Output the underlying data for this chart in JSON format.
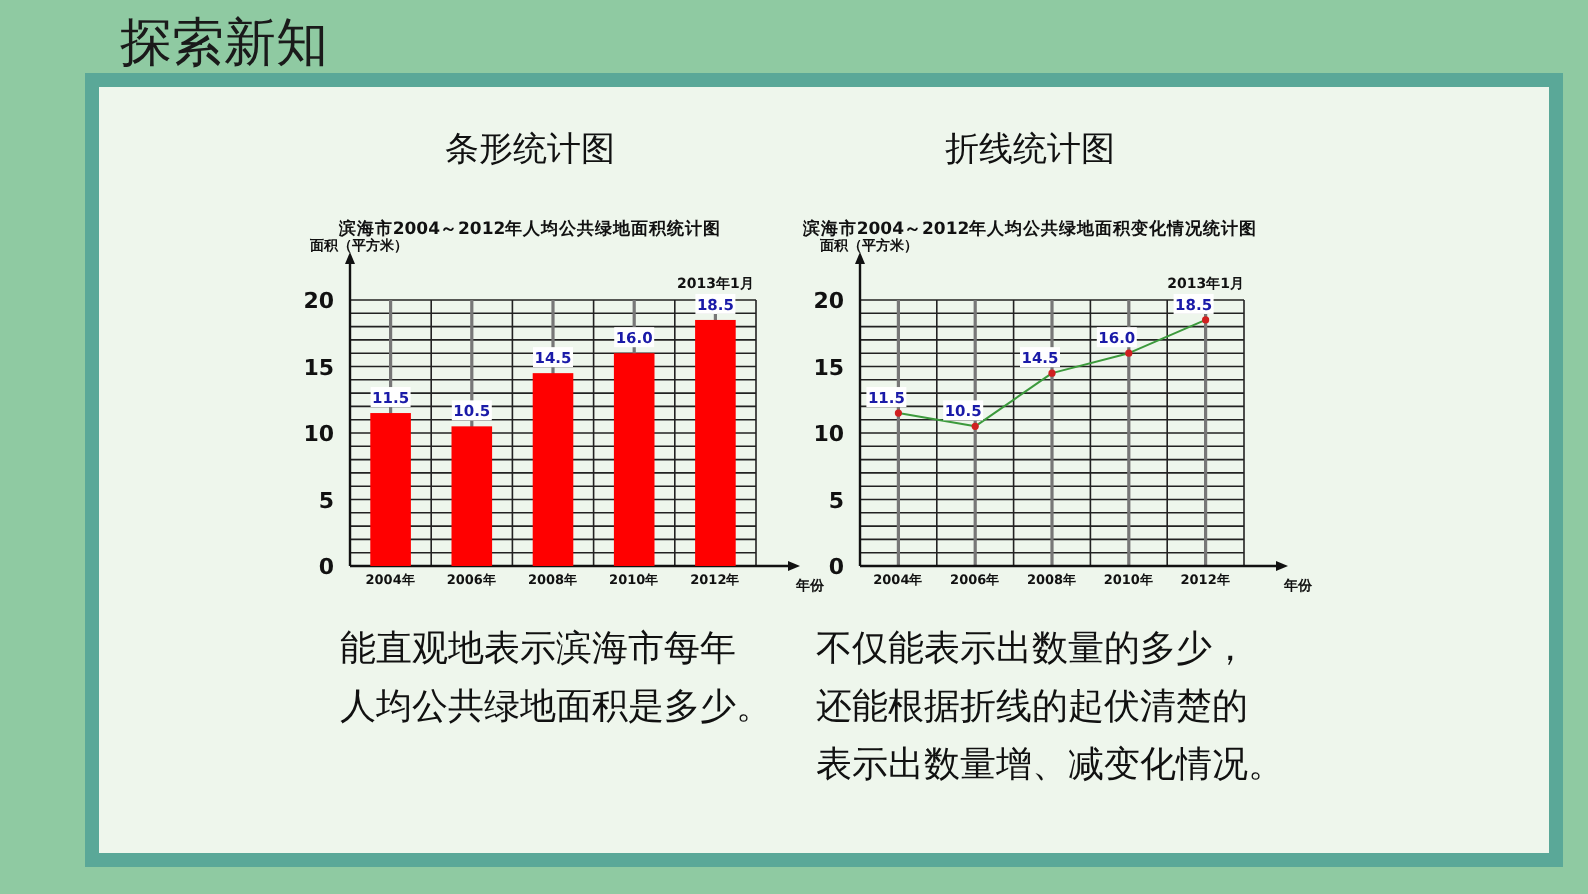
{
  "chart_data": [
    {
      "type": "bar",
      "subtitle": "条形统计图",
      "title": "滨海市2004～2012年人均公共绿地面积统计图",
      "ylabel": "面积（平方米）",
      "xlabel": "年份",
      "categories": [
        "2004年",
        "2006年",
        "2008年",
        "2010年",
        "2012年"
      ],
      "values": [
        11.5,
        10.5,
        14.5,
        16.0,
        18.5
      ],
      "color": "#ff0000",
      "value_labels": [
        "11.5",
        "10.5",
        "14.5",
        "16.0",
        "18.5"
      ],
      "ylim": [
        0,
        20
      ],
      "yticks": [
        0,
        {
          "value": 1,
          "label": null
        },
        {
          "value": 2,
          "label": null
        },
        {
          "value": 3,
          "label": null
        },
        {
          "value": 4,
          "label": null
        },
        5,
        {
          "value": 6,
          "label": null
        },
        {
          "value": 7,
          "label": null
        },
        {
          "value": 8,
          "label": null
        },
        {
          "value": 9,
          "label": null
        },
        10,
        {
          "value": 11,
          "label": null
        },
        {
          "value": 12,
          "label": null
        },
        {
          "value": 13,
          "label": null
        },
        {
          "value": 14,
          "label": null
        },
        15,
        {
          "value": 16,
          "label": null
        },
        {
          "value": 17,
          "label": null
        },
        {
          "value": 18,
          "label": null
        },
        {
          "value": 19,
          "label": null
        },
        20
      ],
      "grid": true,
      "annotations": [
        "探索新知",
        "2013年1月",
        "能直观地表示滨海市每年",
        "人均公共绿地面积是多少。"
      ]
    },
    {
      "type": "line",
      "subtitle": "折线统计图",
      "title": "滨海市2004～2012年人均公共绿地面积变化情况统计图",
      "ylabel": "面积（平方米）",
      "xlabel": "年份",
      "categories": [
        "2004年",
        "2006年",
        "2008年",
        "2010年",
        "2012年"
      ],
      "series": [
        {
          "color": "#3c9a3c",
          "colors": [
            "#d02020",
            "#d02020",
            "#d02020",
            "#d02020",
            "#d02020"
          ],
          "values": [
            11.5,
            10.5,
            14.5,
            16.0,
            18.5
          ]
        }
      ],
      "value_labels": [
        "11.5",
        "10.5",
        "14.5",
        "16.0",
        "18.5"
      ],
      "marker": "circle",
      "ylim": [
        0,
        20
      ],
      "yticks": [
        0,
        {
          "value": 1,
          "label": null
        },
        {
          "value": 2,
          "label": null
        },
        {
          "value": 3,
          "label": null
        },
        {
          "value": 4,
          "label": null
        },
        5,
        {
          "value": 6,
          "label": null
        },
        {
          "value": 7,
          "label": null
        },
        {
          "value": 8,
          "label": null
        },
        {
          "value": 9,
          "label": null
        },
        10,
        {
          "value": 11,
          "label": null
        },
        {
          "value": 12,
          "label": null
        },
        {
          "value": 13,
          "label": null
        },
        {
          "value": 14,
          "label": null
        },
        15,
        {
          "value": 16,
          "label": null
        },
        {
          "value": 17,
          "label": null
        },
        {
          "value": 18,
          "label": null
        },
        {
          "value": 19,
          "label": null
        },
        20
      ],
      "grid": true,
      "annotations": [
        "2013年1月",
        "不仅能表示出数量的多少，",
        "还能根据折线的起伏清楚的",
        "表示出数量增、减变化情况。"
      ]
    }
  ]
}
